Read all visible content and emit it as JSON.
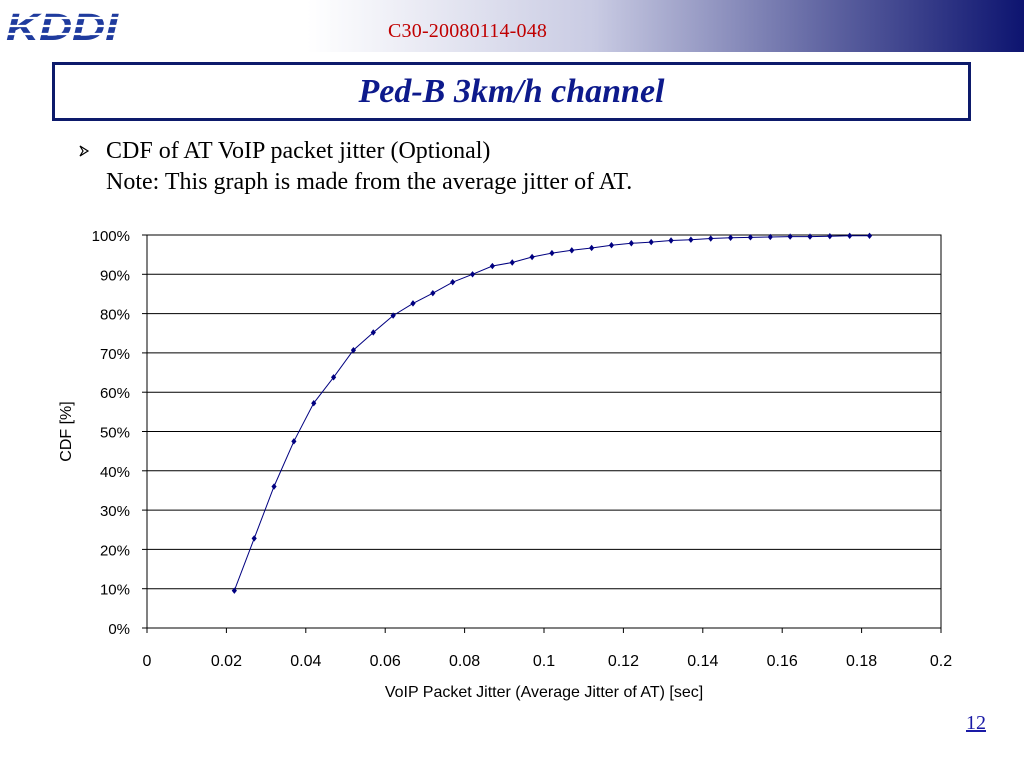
{
  "header": {
    "logo_text": "KDDI",
    "doc_id": "C30-20080114-048"
  },
  "slide": {
    "title": "Ped-B 3km/h channel",
    "bullet_line1": "CDF of AT VoIP packet jitter (Optional)",
    "bullet_line2": "Note: This graph is made from the average jitter of AT.",
    "page_number": "12"
  },
  "colors": {
    "series": "#000080",
    "title": "#0d1a8c",
    "doc_id": "#c00000"
  },
  "icons": {
    "bullet": "arrow-bullet-icon"
  },
  "chart_data": {
    "type": "line",
    "xlabel": "VoIP Packet Jitter (Average Jitter of AT) [sec]",
    "ylabel": "CDF [%]",
    "xlim": [
      0,
      0.2
    ],
    "ylim": [
      0,
      100
    ],
    "x_ticks": [
      "0",
      "0.02",
      "0.04",
      "0.06",
      "0.08",
      "0.1",
      "0.12",
      "0.14",
      "0.16",
      "0.18",
      "0.2"
    ],
    "y_ticks": [
      "0%",
      "10%",
      "20%",
      "30%",
      "40%",
      "50%",
      "60%",
      "70%",
      "80%",
      "90%",
      "100%"
    ],
    "grid": "horizontal",
    "legend": "none",
    "series": [
      {
        "x": [
          0.022,
          0.027,
          0.032,
          0.037,
          0.042,
          0.047,
          0.052,
          0.057,
          0.062,
          0.067,
          0.072,
          0.077,
          0.082,
          0.087,
          0.092,
          0.097,
          0.102,
          0.107,
          0.112,
          0.117,
          0.122,
          0.127,
          0.132,
          0.137,
          0.142,
          0.147,
          0.152,
          0.157,
          0.162,
          0.167,
          0.172,
          0.177,
          0.182
        ],
        "y": [
          9.5,
          22.8,
          36.0,
          47.5,
          57.2,
          63.8,
          70.7,
          75.2,
          79.5,
          82.6,
          85.2,
          88.0,
          90.0,
          92.1,
          93.0,
          94.4,
          95.4,
          96.1,
          96.7,
          97.4,
          97.9,
          98.2,
          98.6,
          98.8,
          99.1,
          99.3,
          99.4,
          99.5,
          99.6,
          99.6,
          99.7,
          99.8,
          99.8
        ]
      }
    ]
  }
}
